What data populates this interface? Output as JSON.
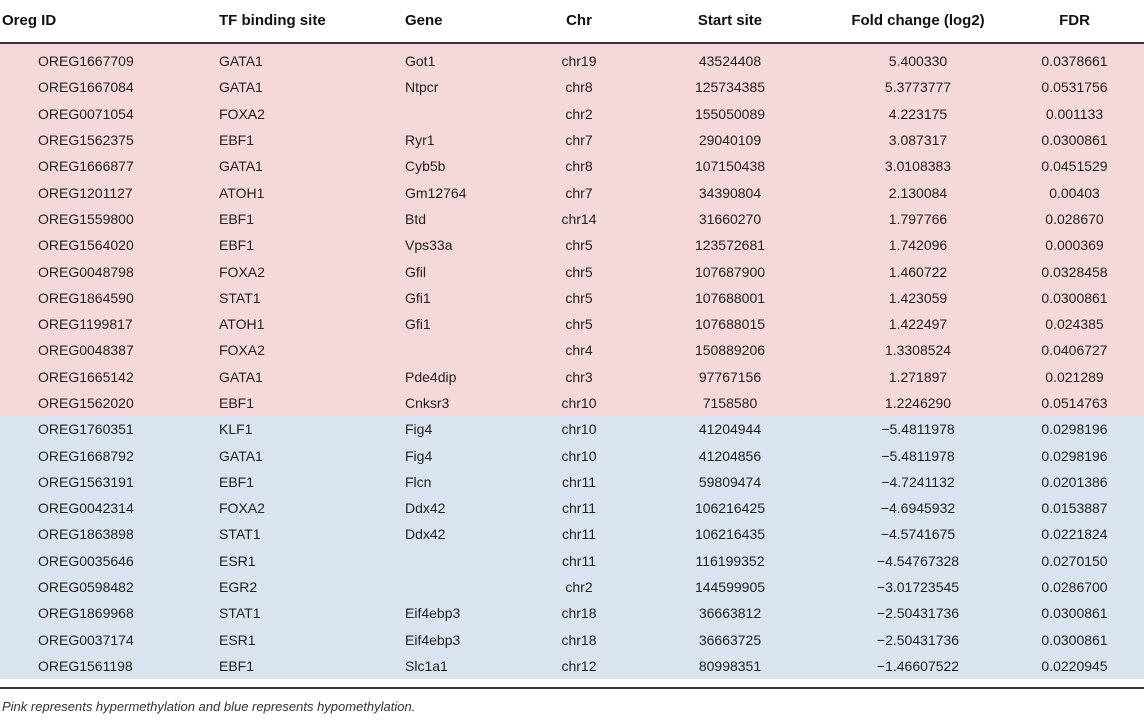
{
  "table": {
    "headers": [
      "Oreg ID",
      "TF binding site",
      "Gene",
      "Chr",
      "Start site",
      "Fold change (log2)",
      "FDR"
    ],
    "rows": [
      {
        "group": "hyper",
        "cells": [
          "OREG1667709",
          "GATA1",
          "Got1",
          "chr19",
          "43524408",
          "5.400330",
          "0.0378661"
        ]
      },
      {
        "group": "hyper",
        "cells": [
          "OREG1667084",
          "GATA1",
          "Ntpcr",
          "chr8",
          "125734385",
          "5.3773777",
          "0.0531756"
        ]
      },
      {
        "group": "hyper",
        "cells": [
          "OREG0071054",
          "FOXA2",
          "",
          "chr2",
          "155050089",
          "4.223175",
          "0.001133"
        ]
      },
      {
        "group": "hyper",
        "cells": [
          "OREG1562375",
          "EBF1",
          "Ryr1",
          "chr7",
          "29040109",
          "3.087317",
          "0.0300861"
        ]
      },
      {
        "group": "hyper",
        "cells": [
          "OREG1666877",
          "GATA1",
          "Cyb5b",
          "chr8",
          "107150438",
          "3.0108383",
          "0.0451529"
        ]
      },
      {
        "group": "hyper",
        "cells": [
          "OREG1201127",
          "ATOH1",
          "Gm12764",
          "chr7",
          "34390804",
          "2.130084",
          "0.00403"
        ]
      },
      {
        "group": "hyper",
        "cells": [
          "OREG1559800",
          "EBF1",
          "Btd",
          "chr14",
          "31660270",
          "1.797766",
          "0.028670"
        ]
      },
      {
        "group": "hyper",
        "cells": [
          "OREG1564020",
          "EBF1",
          "Vps33a",
          "chr5",
          "123572681",
          "1.742096",
          "0.000369"
        ]
      },
      {
        "group": "hyper",
        "cells": [
          "OREG0048798",
          "FOXA2",
          "Gfil",
          "chr5",
          "107687900",
          "1.460722",
          "0.0328458"
        ]
      },
      {
        "group": "hyper",
        "cells": [
          "OREG1864590",
          "STAT1",
          "Gfi1",
          "chr5",
          "107688001",
          "1.423059",
          "0.0300861"
        ]
      },
      {
        "group": "hyper",
        "cells": [
          "OREG1199817",
          "ATOH1",
          "Gfi1",
          "chr5",
          "107688015",
          "1.422497",
          "0.024385"
        ]
      },
      {
        "group": "hyper",
        "cells": [
          "OREG0048387",
          "FOXA2",
          "",
          "chr4",
          "150889206",
          "1.3308524",
          "0.0406727"
        ]
      },
      {
        "group": "hyper",
        "cells": [
          "OREG1665142",
          "GATA1",
          "Pde4dip",
          "chr3",
          "97767156",
          "1.271897",
          "0.021289"
        ]
      },
      {
        "group": "hyper",
        "cells": [
          "OREG1562020",
          "EBF1",
          "Cnksr3",
          "chr10",
          "7158580",
          "1.2246290",
          "0.0514763"
        ]
      },
      {
        "group": "hypo",
        "cells": [
          "OREG1760351",
          "KLF1",
          "Fig4",
          "chr10",
          "41204944",
          "−5.4811978",
          "0.0298196"
        ]
      },
      {
        "group": "hypo",
        "cells": [
          "OREG1668792",
          "GATA1",
          "Fig4",
          "chr10",
          "41204856",
          "−5.4811978",
          "0.0298196"
        ]
      },
      {
        "group": "hypo",
        "cells": [
          "OREG1563191",
          "EBF1",
          "Flcn",
          "chr11",
          "59809474",
          "−4.7241132",
          "0.0201386"
        ]
      },
      {
        "group": "hypo",
        "cells": [
          "OREG0042314",
          "FOXA2",
          "Ddx42",
          "chr11",
          "106216425",
          "−4.6945932",
          "0.0153887"
        ]
      },
      {
        "group": "hypo",
        "cells": [
          "OREG1863898",
          "STAT1",
          "Ddx42",
          "chr11",
          "106216435",
          "−4.5741675",
          "0.0221824"
        ]
      },
      {
        "group": "hypo",
        "cells": [
          "OREG0035646",
          "ESR1",
          "",
          "chr11",
          "116199352",
          "−4.54767328",
          "0.0270150"
        ]
      },
      {
        "group": "hypo",
        "cells": [
          "OREG0598482",
          "EGR2",
          "",
          "chr2",
          "144599905",
          "−3.01723545",
          "0.0286700"
        ]
      },
      {
        "group": "hypo",
        "cells": [
          "OREG1869968",
          "STAT1",
          "Eif4ebp3",
          "chr18",
          "36663812",
          "−2.50431736",
          "0.0300861"
        ]
      },
      {
        "group": "hypo",
        "cells": [
          "OREG0037174",
          "ESR1",
          "Eif4ebp3",
          "chr18",
          "36663725",
          "−2.50431736",
          "0.0300861"
        ]
      },
      {
        "group": "hypo",
        "cells": [
          "OREG1561198",
          "EBF1",
          "Slc1a1",
          "chr12",
          "80998351",
          "−1.46607522",
          "0.0220945"
        ]
      }
    ],
    "colors": {
      "hyper": "#f5d9da",
      "hypo": "#d9e4ef"
    }
  },
  "footnote": "Pink represents hypermethylation and blue represents hypomethylation."
}
